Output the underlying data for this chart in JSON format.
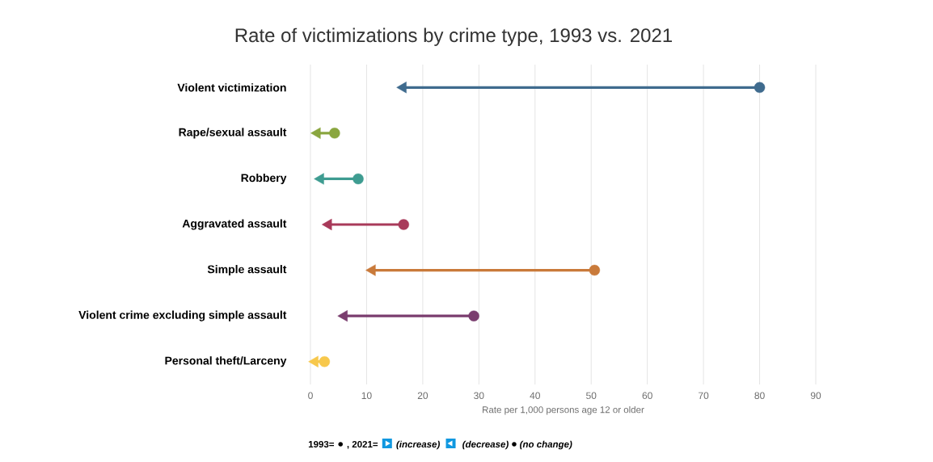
{
  "chart_data": {
    "type": "scatter",
    "title": "Rate of victimizations by crime type, 1993 vs. 2021",
    "xlabel": "Rate per 1,000 persons age 12 or older",
    "orientation": "horizontal",
    "categories": [
      "Violent victimization",
      "Rape/sexual assault",
      "Robbery",
      "Aggravated assault",
      "Simple assault",
      "Violent crime excluding simple assault",
      "Personal theft/Larceny"
    ],
    "series": [
      {
        "marker": "circle",
        "values": [
          80,
          4.3,
          8.5,
          16.6,
          50.6,
          29.1,
          2.5
        ],
        "colors": [
          "#3f6b8e",
          "#8aa63f",
          "#3e9c91",
          "#a83a5a",
          "#c97a3a",
          "#7a3d6e",
          "#f7c84c"
        ]
      },
      {
        "marker": "triangle",
        "values": [
          16.5,
          1.2,
          1.8,
          3.2,
          11,
          6,
          0.8
        ],
        "colors": [
          "#3f6b8e",
          "#8aa63f",
          "#3e9c91",
          "#a83a5a",
          "#c97a3a",
          "#7a3d6e",
          "#f7c84c"
        ]
      }
    ],
    "xlim": [
      0,
      90
    ],
    "xticks": [
      0,
      10,
      20,
      30,
      40,
      50,
      60,
      70,
      80,
      90
    ],
    "grid": "x",
    "annotations": [
      "1993=",
      ", 2021=",
      "(increase)",
      "(decrease)",
      "(no change)"
    ]
  }
}
